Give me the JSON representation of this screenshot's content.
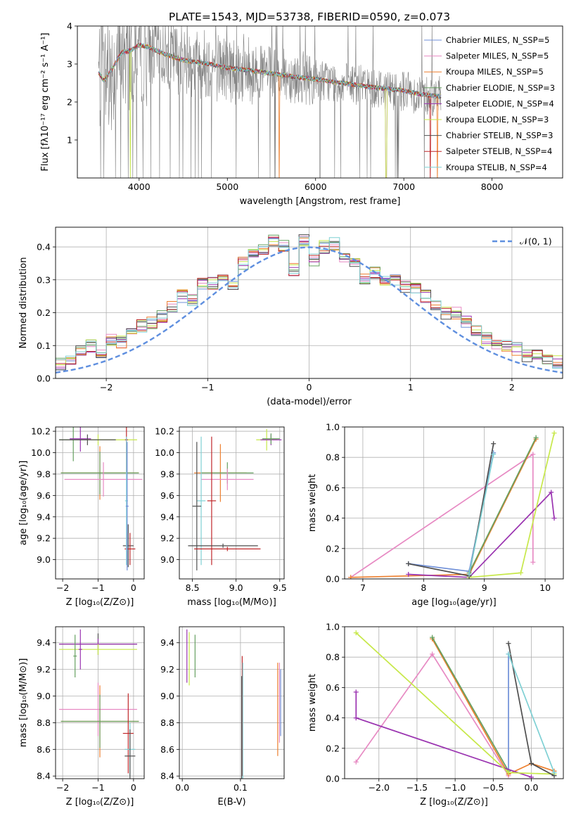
{
  "figure_title": "PLATE=1543, MJD=53738, FIBERID=0590, z=0.073",
  "series_colors": [
    "#6f8fd8",
    "#e78ac3",
    "#ed7f2e",
    "#66a061",
    "#9a33b0",
    "#c7e84a",
    "#4f4f4f",
    "#c0282a",
    "#7fd0d4"
  ],
  "chart_data": [
    {
      "type": "line",
      "title": "PLATE=1543, MJD=53738, FIBERID=0590, z=0.073",
      "xlabel": "wavelength [Angstrom, rest frame]",
      "ylabel": "Flux [fλ10⁻¹⁷ erg cm⁻² s⁻¹ A⁻¹]",
      "xlim": [
        3300,
        8800
      ],
      "ylim": [
        0,
        4
      ],
      "xticks": [
        4000,
        5000,
        6000,
        7000,
        8000
      ],
      "yticks": [
        1,
        2,
        3,
        4
      ],
      "grid": false,
      "legend_position": "top-right",
      "series": [
        {
          "name": "Chabrier MILES, N_SSP=5"
        },
        {
          "name": "Salpeter MILES, N_SSP=5"
        },
        {
          "name": "Kroupa MILES, N_SSP=5"
        },
        {
          "name": "Chabrier ELODIE, N_SSP=3"
        },
        {
          "name": "Salpeter ELODIE, N_SSP=4"
        },
        {
          "name": "Kroupa ELODIE, N_SSP=3"
        },
        {
          "name": "Chabrier STELIB, N_SSP=3"
        },
        {
          "name": "Salpeter STELIB, N_SSP=4"
        },
        {
          "name": "Kroupa STELIB, N_SSP=4"
        }
      ],
      "continuum": {
        "x": [
          3550,
          3600,
          3700,
          3800,
          3900,
          4000,
          4100,
          4300,
          4500,
          4800,
          5000,
          5200,
          5500,
          5800,
          6000,
          6300,
          6600,
          7000,
          7200,
          7400
        ],
        "y": [
          2.75,
          2.55,
          2.9,
          3.3,
          3.35,
          3.5,
          3.45,
          3.25,
          3.1,
          3.0,
          2.9,
          2.85,
          2.75,
          2.65,
          2.6,
          2.5,
          2.4,
          2.3,
          2.2,
          2.15
        ]
      }
    },
    {
      "type": "bar",
      "xlabel": "(data-model)/error",
      "ylabel": "Normed distribution",
      "xlim": [
        -2.5,
        2.5
      ],
      "ylim": [
        0,
        0.46
      ],
      "xticks": [
        -2,
        -1,
        0,
        1,
        2
      ],
      "yticks": [
        0.0,
        0.1,
        0.2,
        0.3,
        0.4
      ],
      "grid": true,
      "legend": [
        "𝒩(0, 1)"
      ],
      "legend_position": "top-right",
      "bin_width": 0.1,
      "histogram": [
        0.03,
        0.035,
        0.04,
        0.045,
        0.05,
        0.08,
        0.1,
        0.08,
        0.12,
        0.11,
        0.14,
        0.16,
        0.17,
        0.19,
        0.22,
        0.25,
        0.24,
        0.29,
        0.29,
        0.3,
        0.28,
        0.35,
        0.38,
        0.39,
        0.42,
        0.4,
        0.33,
        0.42,
        0.36,
        0.4,
        0.41,
        0.37,
        0.35,
        0.3,
        0.32,
        0.3,
        0.3,
        0.28,
        0.27,
        0.25,
        0.22,
        0.2,
        0.2,
        0.17,
        0.15,
        0.12,
        0.1,
        0.1,
        0.09,
        0.07,
        0.07,
        0.06,
        0.05,
        0.04,
        0.03,
        0.03
      ],
      "gaussian": {
        "mean": 0,
        "sigma": 1
      }
    },
    {
      "type": "scatter",
      "xlabel": "Z [log₁₀(Z/Z⊙)]",
      "ylabel": "age  [log₁₀(age/yr)]",
      "xlim": [
        -2.2,
        0.3
      ],
      "ylim": [
        8.82,
        10.24
      ],
      "xticks": [
        -2,
        -1,
        0
      ],
      "yticks": [
        9.0,
        9.2,
        9.4,
        9.6,
        9.8,
        10.0,
        10.2
      ],
      "grid": true,
      "points": [
        {
          "x": -0.95,
          "y": 9.81,
          "ex": 1.1,
          "ey": 0.25,
          "c": 2
        },
        {
          "x": -0.95,
          "y": 9.81,
          "ex": 1.1,
          "ey": 0.2,
          "c": 3
        },
        {
          "x": -0.85,
          "y": 9.75,
          "ex": 1.1,
          "ey": 0.16,
          "c": 1
        },
        {
          "x": -1.0,
          "y": 10.12,
          "ex": 1.1,
          "ey": 0.05,
          "c": 5
        },
        {
          "x": -1.7,
          "y": 10.12,
          "ex": 0.4,
          "ey": 0.2,
          "c": 3
        },
        {
          "x": -1.5,
          "y": 10.13,
          "ex": 0.3,
          "ey": 0.12,
          "c": 4
        },
        {
          "x": -1.3,
          "y": 10.12,
          "ex": 0.8,
          "ey": 0.05,
          "c": 6
        },
        {
          "x": -0.2,
          "y": 10.12,
          "ex": 0.04,
          "ey": 0.3,
          "c": 7
        },
        {
          "x": -0.15,
          "y": 9.13,
          "ex": 0.15,
          "ey": 0.2,
          "c": 6
        },
        {
          "x": -0.1,
          "y": 9.1,
          "ex": 0.15,
          "ey": 0.15,
          "c": 7
        },
        {
          "x": -0.2,
          "y": 9.55,
          "ex": 0.04,
          "ey": 0.6,
          "c": 8
        },
        {
          "x": -0.18,
          "y": 9.5,
          "ex": 0.04,
          "ey": 0.6,
          "c": 0
        }
      ]
    },
    {
      "type": "scatter",
      "xlabel": "mass [log₁₀(M/M⊙)]",
      "xlim": [
        8.35,
        9.55
      ],
      "ylim": [
        8.82,
        10.24
      ],
      "xticks": [
        8.5,
        9.0,
        9.5
      ],
      "yticks": [
        9.0,
        9.2,
        9.4,
        9.6,
        9.8,
        10.0,
        10.2
      ],
      "grid": true,
      "points": [
        {
          "x": 8.82,
          "y": 9.81,
          "ex": 0.3,
          "ey": 0.27,
          "c": 2
        },
        {
          "x": 8.9,
          "y": 9.81,
          "ex": 0.3,
          "ey": 0.1,
          "c": 3
        },
        {
          "x": 8.9,
          "y": 9.75,
          "ex": 0.3,
          "ey": 0.1,
          "c": 1
        },
        {
          "x": 9.35,
          "y": 10.12,
          "ex": 0.12,
          "ey": 0.1,
          "c": 5
        },
        {
          "x": 9.4,
          "y": 10.12,
          "ex": 0.12,
          "ey": 0.05,
          "c": 4
        },
        {
          "x": 9.4,
          "y": 10.13,
          "ex": 0.1,
          "ey": 0.05,
          "c": 3
        },
        {
          "x": 8.72,
          "y": 9.55,
          "ex": 0.05,
          "ey": 0.6,
          "c": 7
        },
        {
          "x": 8.6,
          "y": 9.55,
          "ex": 0.05,
          "ey": 0.6,
          "c": 8
        },
        {
          "x": 8.55,
          "y": 9.5,
          "ex": 0.05,
          "ey": 0.6,
          "c": 6
        },
        {
          "x": 8.9,
          "y": 9.1,
          "ex": 0.38,
          "ey": 0.02,
          "c": 7
        },
        {
          "x": 8.85,
          "y": 9.13,
          "ex": 0.4,
          "ey": 0.02,
          "c": 6
        }
      ]
    },
    {
      "type": "line",
      "xlabel": "age  [log₁₀(age/yr)]",
      "ylabel": "mass weight",
      "xlim": [
        6.7,
        10.3
      ],
      "ylim": [
        0,
        1
      ],
      "xticks": [
        7,
        8,
        9,
        10
      ],
      "yticks": [
        0.0,
        0.2,
        0.4,
        0.6,
        0.8,
        1.0
      ],
      "grid": true,
      "series": [
        {
          "c": 0,
          "x": [
            7.75,
            8.75,
            9.15
          ],
          "y": [
            0.1,
            0.05,
            0.83
          ]
        },
        {
          "c": 1,
          "x": [
            6.8,
            9.8,
            9.8
          ],
          "y": [
            0.01,
            0.82,
            0.11
          ]
        },
        {
          "c": 2,
          "x": [
            6.8,
            8.75,
            9.85
          ],
          "y": [
            0.01,
            0.03,
            0.92
          ]
        },
        {
          "c": 3,
          "x": [
            8.75,
            9.85
          ],
          "y": [
            0.04,
            0.93
          ]
        },
        {
          "c": 4,
          "x": [
            7.75,
            8.75,
            10.1,
            10.15
          ],
          "y": [
            0.03,
            0.01,
            0.57,
            0.4
          ]
        },
        {
          "c": 5,
          "x": [
            8.75,
            9.6,
            10.15
          ],
          "y": [
            0.01,
            0.04,
            0.96
          ]
        },
        {
          "c": 6,
          "x": [
            7.75,
            8.75,
            9.15
          ],
          "y": [
            0.1,
            0.02,
            0.89
          ]
        },
        {
          "c": 8,
          "x": [
            8.75,
            9.15
          ],
          "y": [
            0.03,
            0.82
          ]
        }
      ]
    },
    {
      "type": "scatter",
      "xlabel": "Z [log₁₀(Z/Z⊙)]",
      "ylabel": "mass [log₁₀(M/M⊙)]",
      "xlim": [
        -2.2,
        0.3
      ],
      "ylim": [
        8.38,
        9.52
      ],
      "xticks": [
        -2,
        -1,
        0
      ],
      "yticks": [
        8.4,
        8.6,
        8.8,
        9.0,
        9.2,
        9.4
      ],
      "grid": true,
      "points": [
        {
          "x": -1.0,
          "y": 9.39,
          "ex": 1.1,
          "ey": 0.08,
          "c": 6
        },
        {
          "x": -1.0,
          "y": 9.39,
          "ex": 1.1,
          "ey": 0.04,
          "c": 4
        },
        {
          "x": -1.0,
          "y": 9.35,
          "ex": 1.1,
          "ey": 0.04,
          "c": 5
        },
        {
          "x": -1.65,
          "y": 9.3,
          "ex": 0.05,
          "ey": 0.16,
          "c": 3
        },
        {
          "x": -1.5,
          "y": 9.35,
          "ex": 0.05,
          "ey": 0.15,
          "c": 4
        },
        {
          "x": -1.0,
          "y": 8.9,
          "ex": 1.1,
          "ey": 0.2,
          "c": 1
        },
        {
          "x": -0.95,
          "y": 8.81,
          "ex": 1.1,
          "ey": 0.27,
          "c": 2
        },
        {
          "x": -0.95,
          "y": 8.81,
          "ex": 1.1,
          "ey": 0.2,
          "c": 3
        },
        {
          "x": -0.15,
          "y": 8.72,
          "ex": 0.15,
          "ey": 0.3,
          "c": 7
        },
        {
          "x": -0.1,
          "y": 8.6,
          "ex": 0.15,
          "ey": 0.2,
          "c": 8
        },
        {
          "x": -0.1,
          "y": 8.55,
          "ex": 0.15,
          "ey": 0.2,
          "c": 6
        }
      ]
    },
    {
      "type": "scatter",
      "xlabel": "E(B-V)",
      "xlim": [
        -0.005,
        0.175
      ],
      "ylim": [
        8.38,
        9.52
      ],
      "xticks": [
        0.0,
        0.1
      ],
      "yticks": [
        8.4,
        8.6,
        8.8,
        9.0,
        9.2,
        9.4
      ],
      "grid": true,
      "points": [
        {
          "x": 0.008,
          "y": 9.3,
          "ex": 0,
          "ey": 0.2,
          "c": 4
        },
        {
          "x": 0.012,
          "y": 9.28,
          "ex": 0,
          "ey": 0.2,
          "c": 5
        },
        {
          "x": 0.022,
          "y": 9.3,
          "ex": 0,
          "ey": 0.16,
          "c": 3
        },
        {
          "x": 0.103,
          "y": 8.85,
          "ex": 0,
          "ey": 0.45,
          "c": 7
        },
        {
          "x": 0.104,
          "y": 8.8,
          "ex": 0,
          "ey": 0.45,
          "c": 8
        },
        {
          "x": 0.102,
          "y": 8.75,
          "ex": 0,
          "ey": 0.4,
          "c": 6
        },
        {
          "x": 0.164,
          "y": 8.9,
          "ex": 0,
          "ey": 0.35,
          "c": 2
        },
        {
          "x": 0.167,
          "y": 8.95,
          "ex": 0,
          "ey": 0.3,
          "c": 1
        },
        {
          "x": 0.169,
          "y": 8.95,
          "ex": 0,
          "ey": 0.25,
          "c": 0
        }
      ]
    },
    {
      "type": "line",
      "xlabel": "Z [log₁₀(Z/Z⊙)]",
      "ylabel": "mass weight",
      "xlim": [
        -2.45,
        0.42
      ],
      "ylim": [
        0,
        1
      ],
      "xticks": [
        -2.0,
        -1.5,
        -1.0,
        -0.5,
        0.0
      ],
      "yticks": [
        0.0,
        0.2,
        0.4,
        0.6,
        0.8,
        1.0
      ],
      "grid": true,
      "series": [
        {
          "c": 0,
          "x": [
            -0.3,
            -0.3
          ],
          "y": [
            0.04,
            0.82
          ]
        },
        {
          "c": 1,
          "x": [
            -2.3,
            -1.3,
            -0.3
          ],
          "y": [
            0.11,
            0.82,
            0.02
          ]
        },
        {
          "c": 2,
          "x": [
            -1.3,
            -0.3,
            0.0,
            0.3
          ],
          "y": [
            0.92,
            0.03,
            0.1,
            0.05
          ]
        },
        {
          "c": 3,
          "x": [
            -1.3,
            -0.3
          ],
          "y": [
            0.93,
            0.05
          ]
        },
        {
          "c": 4,
          "x": [
            -2.3,
            -2.3,
            0.0
          ],
          "y": [
            0.57,
            0.4,
            0.01
          ]
        },
        {
          "c": 5,
          "x": [
            -2.3,
            -0.3,
            0.3
          ],
          "y": [
            0.96,
            0.04,
            0.03
          ]
        },
        {
          "c": 6,
          "x": [
            -0.3,
            0.0,
            0.3
          ],
          "y": [
            0.89,
            0.1,
            0.02
          ]
        },
        {
          "c": 8,
          "x": [
            -0.3,
            0.3
          ],
          "y": [
            0.82,
            0.04
          ]
        }
      ]
    }
  ]
}
